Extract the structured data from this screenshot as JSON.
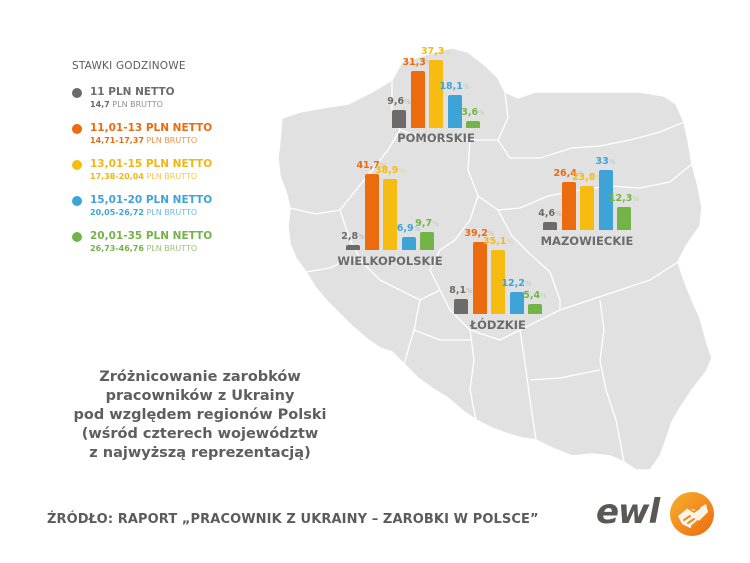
{
  "legend": {
    "title": "STAWKI GODZINOWE",
    "items": [
      {
        "netto": "11 PLN NETTO",
        "brutto_range": "14,7",
        "brutto_suffix": "PLN BRUTTO",
        "color": "#6d6a67"
      },
      {
        "netto": "11,01-13 PLN NETTO",
        "brutto_range": "14,71-17,37",
        "brutto_suffix": "PLN BRUTTO",
        "color": "#ec6b0e"
      },
      {
        "netto": "13,01-15 PLN NETTO",
        "brutto_range": "17,38-20,04",
        "brutto_suffix": "PLN BRUTTO",
        "color": "#f6bc12"
      },
      {
        "netto": "15,01-20 PLN NETTO",
        "brutto_range": "20,05-26,72",
        "brutto_suffix": "PLN BRUTTO",
        "color": "#3ea4d8"
      },
      {
        "netto": "20,01-35 PLN NETTO",
        "brutto_range": "26,73-46,76",
        "brutto_suffix": "PLN BRUTTO",
        "color": "#72b447"
      }
    ]
  },
  "regions": [
    {
      "name": "POMORSKIE",
      "values": [
        "9,6",
        "31,3",
        "37,3",
        "18,1",
        "3,6"
      ]
    },
    {
      "name": "WIELKOPOLSKIE",
      "values": [
        "2,8",
        "41,7",
        "38,9",
        "6,9",
        "9,7"
      ]
    },
    {
      "name": "ŁÓDZKIE",
      "values": [
        "8,1",
        "39,2",
        "35,1",
        "12,2",
        "5,4"
      ]
    },
    {
      "name": "MAZOWIECKIE",
      "values": [
        "4,6",
        "26,4",
        "23,8",
        "33",
        "12,3"
      ]
    }
  ],
  "pct_sign": "%",
  "caption": [
    "Zróżnicowanie zarobków",
    "pracowników z Ukrainy",
    "pod względem regionów Polski",
    "(wśród czterech województw",
    "z najwyższą reprezentacją)"
  ],
  "source": "ŹRÓDŁO: RAPORT „PRACOWNIK Z UKRAINY – ZAROBKI W POLSCE”",
  "logo": {
    "text": "ewl"
  },
  "chart_data": {
    "type": "bar",
    "title": "Zróżnicowanie zarobków pracowników z Ukrainy pod względem regionów Polski (wśród czterech województw z najwyższą reprezentacją)",
    "subtitle": "STAWKI GODZINOWE",
    "xlabel": "",
    "ylabel": "%",
    "categories": [
      "POMORSKIE",
      "WIELKOPOLSKIE",
      "ŁÓDZKIE",
      "MAZOWIECKIE"
    ],
    "series": [
      {
        "name": "11 PLN NETTO (14,7 PLN BRUTTO)",
        "color": "#6d6a67",
        "values": [
          9.6,
          2.8,
          8.1,
          4.6
        ]
      },
      {
        "name": "11,01-13 PLN NETTO (14,71-17,37 PLN BRUTTO)",
        "color": "#ec6b0e",
        "values": [
          31.3,
          41.7,
          39.2,
          26.4
        ]
      },
      {
        "name": "13,01-15 PLN NETTO (17,38-20,04 PLN BRUTTO)",
        "color": "#f6bc12",
        "values": [
          37.3,
          38.9,
          35.1,
          23.8
        ]
      },
      {
        "name": "15,01-20 PLN NETTO (20,05-26,72 PLN BRUTTO)",
        "color": "#3ea4d8",
        "values": [
          18.1,
          6.9,
          12.2,
          33
        ]
      },
      {
        "name": "20,01-35 PLN NETTO (26,73-46,76 PLN BRUTTO)",
        "color": "#72b447",
        "values": [
          3.6,
          9.7,
          5.4,
          12.3
        ]
      }
    ],
    "legend_position": "left",
    "grid": false,
    "background": "map of Poland with voivodeship borders",
    "source": "ŹRÓDŁO: RAPORT „PRACOWNIK Z UKRAINY – ZAROBKI W POLSCE”"
  }
}
